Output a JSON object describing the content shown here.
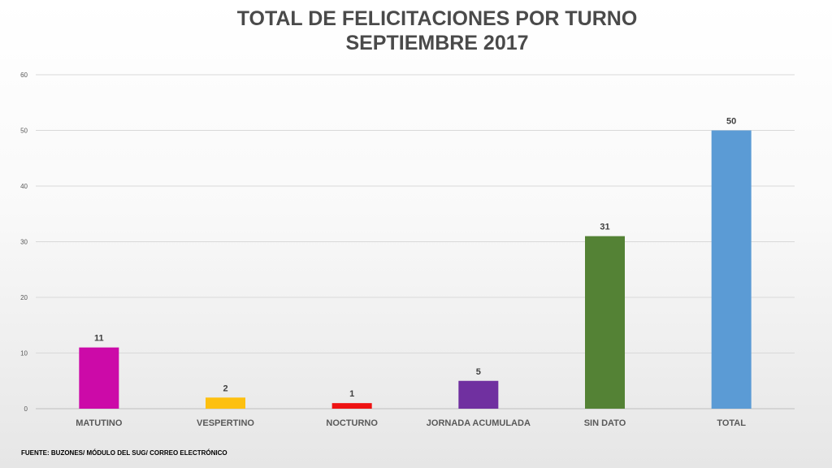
{
  "chart_data": {
    "type": "bar",
    "title": "TOTAL DE FELICITACIONES POR TURNO",
    "subtitle": "SEPTIEMBRE 2017",
    "categories": [
      "MATUTINO",
      "VESPERTINO",
      "NOCTURNO",
      "JORNADA ACUMULADA",
      "SIN DATO",
      "TOTAL"
    ],
    "values": [
      11,
      2,
      1,
      5,
      31,
      50
    ],
    "colors": [
      "#cc0aa8",
      "#fdc010",
      "#ee1212",
      "#7030a0",
      "#548235",
      "#5b9bd5"
    ],
    "ylim": [
      0,
      60
    ],
    "yticks": [
      "0",
      "10",
      "20",
      "30",
      "40",
      "50",
      "60"
    ],
    "grid": true,
    "data_labels": [
      "11",
      "2",
      "1",
      "5",
      "31",
      "50"
    ]
  },
  "footer": {
    "source": "FUENTE: BUZONES/ MÓDULO DEL SUG/ CORREO ELECTRÓNICO"
  }
}
